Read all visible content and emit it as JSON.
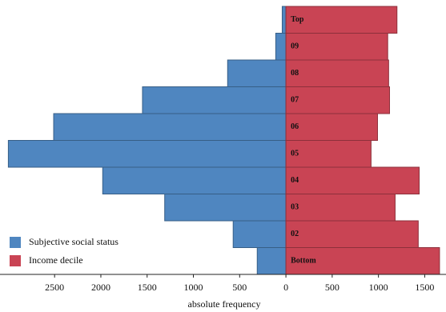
{
  "chart_data": {
    "type": "butterfly",
    "categories": [
      "Top",
      "09",
      "08",
      "07",
      "06",
      "05",
      "04",
      "03",
      "02",
      "Bottom"
    ],
    "series": [
      {
        "name": "Subjective social status",
        "color": "#4f86c0",
        "mirror": true,
        "values": [
          40,
          110,
          630,
          1550,
          2510,
          3000,
          1980,
          1310,
          570,
          310
        ]
      },
      {
        "name": "Income decile",
        "color": "#c94454",
        "mirror": false,
        "values": [
          1200,
          1100,
          1110,
          1120,
          990,
          920,
          1440,
          1180,
          1430,
          1660
        ]
      }
    ],
    "xlabel": "absolute frequency",
    "xlim": [
      -3090,
      1730
    ],
    "xticks": [
      {
        "value": -2500,
        "label": "2500"
      },
      {
        "value": -2000,
        "label": "2000"
      },
      {
        "value": -1500,
        "label": "1500"
      },
      {
        "value": -1000,
        "label": "1000"
      },
      {
        "value": -500,
        "label": "500"
      },
      0,
      500,
      1000,
      1500
    ],
    "legend": "lower left"
  }
}
